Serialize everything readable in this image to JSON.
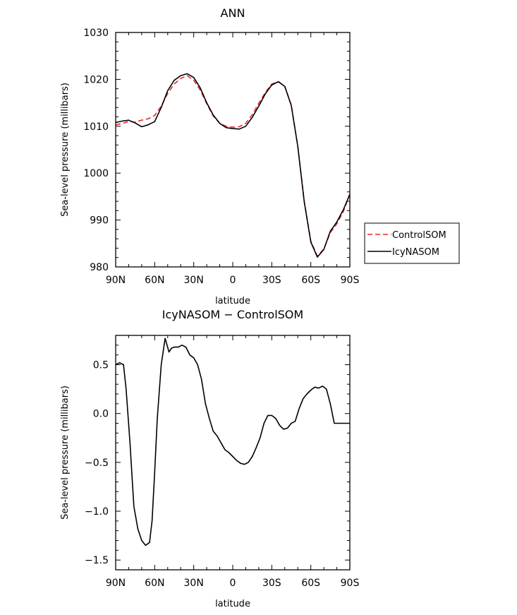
{
  "chart_data": [
    {
      "type": "line",
      "title": "ANN",
      "xlabel": "latitude",
      "ylabel": "Sea-level pressure (millibars)",
      "xlim": [
        90,
        -90
      ],
      "ylim": [
        980,
        1030
      ],
      "x_ticks": [
        90,
        60,
        30,
        0,
        -30,
        -60,
        -90
      ],
      "x_tick_labels": [
        "90N",
        "60N",
        "30N",
        "0",
        "30S",
        "60S",
        "90S"
      ],
      "y_ticks": [
        980,
        990,
        1000,
        1010,
        1020,
        1030
      ],
      "y_tick_labels": [
        "980",
        "990",
        "1000",
        "1010",
        "1020",
        "1030"
      ],
      "legend": {
        "placement": "right"
      },
      "series": [
        {
          "name": "ControlSOM",
          "color": "#e8282b",
          "dash": "dashed",
          "x": [
            90,
            85,
            80,
            75,
            70,
            65,
            60,
            55,
            50,
            45,
            40,
            35,
            30,
            25,
            20,
            15,
            10,
            5,
            0,
            -5,
            -10,
            -15,
            -20,
            -25,
            -30,
            -35,
            -40,
            -45,
            -50,
            -55,
            -60,
            -65,
            -70,
            -75,
            -80,
            -85,
            -90
          ],
          "values": [
            1010.3,
            1010.6,
            1011.0,
            1010.9,
            1011.3,
            1011.6,
            1012.3,
            1014.3,
            1017.0,
            1019.0,
            1020.2,
            1020.8,
            1019.8,
            1017.7,
            1014.8,
            1012.2,
            1010.6,
            1010.0,
            1009.8,
            1009.9,
            1010.6,
            1012.5,
            1014.9,
            1017.2,
            1019.0,
            1019.5,
            1018.5,
            1014.5,
            1005.8,
            994.0,
            985.5,
            982.3,
            983.8,
            987.3,
            989.2,
            991.8,
            995.5
          ]
        },
        {
          "name": "IcyNASOM",
          "color": "#000000",
          "dash": "solid",
          "x": [
            90,
            85,
            80,
            75,
            70,
            65,
            60,
            55,
            50,
            45,
            40,
            35,
            30,
            25,
            20,
            15,
            10,
            5,
            0,
            -5,
            -10,
            -15,
            -20,
            -25,
            -30,
            -35,
            -40,
            -45,
            -50,
            -55,
            -60,
            -65,
            -70,
            -75,
            -80,
            -85,
            -90
          ],
          "values": [
            1010.8,
            1011.1,
            1011.3,
            1010.7,
            1009.9,
            1010.3,
            1011.0,
            1014.0,
            1017.6,
            1019.8,
            1020.8,
            1021.2,
            1020.4,
            1018.2,
            1015.0,
            1012.4,
            1010.6,
            1009.7,
            1009.5,
            1009.4,
            1010.0,
            1011.9,
            1014.3,
            1016.9,
            1018.8,
            1019.5,
            1018.5,
            1014.4,
            1005.7,
            993.8,
            985.3,
            982.1,
            983.7,
            987.6,
            989.6,
            992.2,
            995.5
          ]
        }
      ]
    },
    {
      "type": "line",
      "title": "IcyNASOM − ControlSOM",
      "xlabel": "latitude",
      "ylabel": "Sea-level pressure (millibars)",
      "xlim": [
        90,
        -90
      ],
      "ylim": [
        -1.6,
        0.8
      ],
      "x_ticks": [
        90,
        60,
        30,
        0,
        -30,
        -60,
        -90
      ],
      "x_tick_labels": [
        "90N",
        "60N",
        "30N",
        "0",
        "30S",
        "60S",
        "90S"
      ],
      "y_ticks": [
        -1.5,
        -1.0,
        -0.5,
        0.0,
        0.5
      ],
      "y_tick_labels": [
        "−1.5",
        "−1.0",
        "−0.5",
        "0.0",
        "0.5"
      ],
      "series": [
        {
          "name": "",
          "color": "#000000",
          "dash": "solid",
          "x": [
            90,
            87,
            84,
            82,
            79,
            76,
            73,
            70,
            67,
            64,
            62,
            60,
            58,
            55,
            52,
            49,
            47,
            45,
            42,
            39,
            36,
            33,
            30,
            27,
            24,
            21,
            18,
            15,
            12,
            9,
            6,
            3,
            0,
            -3,
            -6,
            -9,
            -12,
            -15,
            -18,
            -21,
            -24,
            -27,
            -30,
            -33,
            -36,
            -39,
            -42,
            -45,
            -48,
            -51,
            -54,
            -57,
            -60,
            -63,
            -66,
            -69,
            -72,
            -75,
            -78,
            -81,
            -84,
            -87,
            -90
          ],
          "values": [
            0.5,
            0.52,
            0.5,
            0.25,
            -0.3,
            -0.95,
            -1.18,
            -1.3,
            -1.35,
            -1.32,
            -1.1,
            -0.6,
            -0.05,
            0.5,
            0.77,
            0.63,
            0.67,
            0.68,
            0.68,
            0.7,
            0.68,
            0.6,
            0.57,
            0.5,
            0.35,
            0.1,
            -0.05,
            -0.18,
            -0.23,
            -0.3,
            -0.37,
            -0.4,
            -0.44,
            -0.48,
            -0.51,
            -0.52,
            -0.5,
            -0.44,
            -0.35,
            -0.25,
            -0.1,
            -0.02,
            -0.02,
            -0.05,
            -0.12,
            -0.16,
            -0.15,
            -0.1,
            -0.08,
            0.05,
            0.15,
            0.2,
            0.24,
            0.27,
            0.26,
            0.28,
            0.25,
            0.1,
            -0.1,
            -0.1,
            -0.1,
            -0.1,
            -0.1
          ]
        }
      ]
    }
  ]
}
